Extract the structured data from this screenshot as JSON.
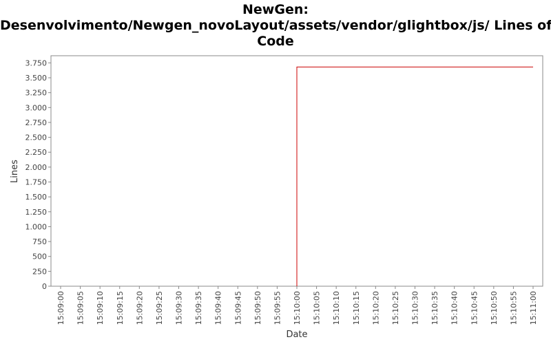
{
  "chart_data": {
    "type": "line",
    "title_lines": [
      "NewGen:",
      "Desenvolvimento/Newgen_novoLayout/assets/vendor/glightbox/js/ Lines of",
      "Code"
    ],
    "xlabel": "Date",
    "ylabel": "Lines",
    "y_ticks": [
      0,
      250,
      500,
      750,
      1000,
      1250,
      1500,
      1750,
      2000,
      2250,
      2500,
      2750,
      3000,
      3250,
      3500,
      3750
    ],
    "y_tick_labels": [
      "0",
      "250",
      "500",
      "750",
      "1.000",
      "1.250",
      "1.500",
      "1.750",
      "2.000",
      "2.250",
      "2.500",
      "2.750",
      "3.000",
      "3.250",
      "3.500",
      "3.750"
    ],
    "x_tick_labels": [
      "15:09:00",
      "15:09:05",
      "15:09:10",
      "15:09:15",
      "15:09:20",
      "15:09:25",
      "15:09:30",
      "15:09:35",
      "15:09:40",
      "15:09:45",
      "15:09:50",
      "15:09:55",
      "15:10:00",
      "15:10:05",
      "15:10:10",
      "15:10:15",
      "15:10:20",
      "15:10:25",
      "15:10:30",
      "15:10:35",
      "15:10:40",
      "15:10:45",
      "15:10:50",
      "15:10:55",
      "15:11:00"
    ],
    "x_range": [
      "15:09:00",
      "15:11:00"
    ],
    "ylim": [
      0,
      3870
    ],
    "grid": false,
    "series": [
      {
        "color": "#cc0000",
        "points": [
          {
            "x": "15:10:00",
            "y": 0
          },
          {
            "x": "15:10:00",
            "y": 3680
          },
          {
            "x": "15:11:00",
            "y": 3680
          }
        ]
      }
    ]
  }
}
